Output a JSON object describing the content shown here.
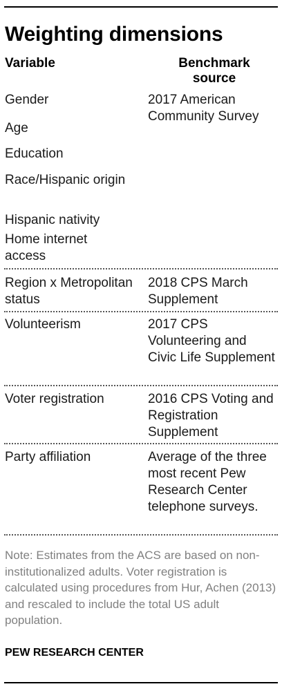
{
  "title": "Weighting dimensions",
  "headers": {
    "variable": "Variable",
    "source": "Benchmark source"
  },
  "rows": [
    {
      "variables": [
        "Gender",
        "Age",
        "Education",
        "Race/Hispanic origin",
        "Hispanic nativity",
        "Home internet access"
      ],
      "source": "2017 American Community Survey"
    },
    {
      "variables": [
        "Region x Metropolitan status"
      ],
      "source": "2018 CPS March Supplement"
    },
    {
      "variables": [
        "Volunteerism"
      ],
      "source": "2017 CPS Volunteering and Civic Life Supplement"
    },
    {
      "variables": [
        "Voter registration"
      ],
      "source": "2016 CPS Voting and Registration Supplement"
    },
    {
      "variables": [
        "Party affiliation"
      ],
      "source": "Average of the three most recent Pew Research Center telephone surveys."
    }
  ],
  "note": "Note: Estimates from the ACS are based on non-institutionalized adults. Voter registration is calculated using procedures from Hur, Achen (2013) and rescaled to include the total US adult population.",
  "source_credit": "PEW RESEARCH CENTER",
  "colors": {
    "text": "#000000",
    "note": "#808080",
    "divider": "#555555"
  }
}
